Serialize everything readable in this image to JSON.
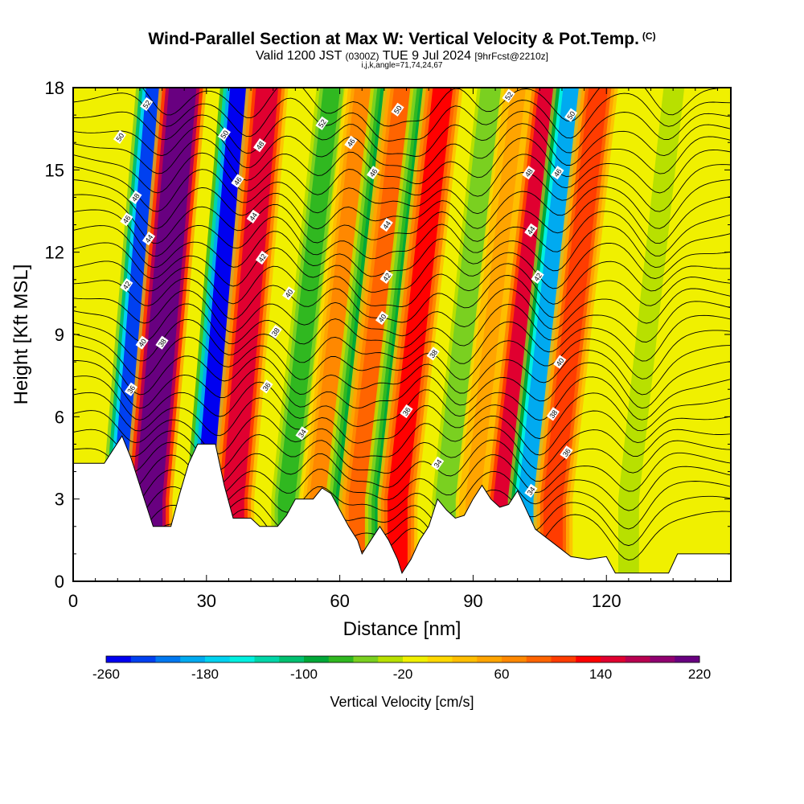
{
  "title": "Wind-Parallel Section at Max W: Vertical Velocity & Pot.Temp.",
  "title_mark": "(C)",
  "subtitle_pre": "Valid 1200 JST",
  "subtitle_zulu": "(0300Z)",
  "subtitle_date": "TUE 9 Jul 2024",
  "subtitle_fcst": "[9hrFcst@2210z]",
  "subtitle2": "i,j,k,angle=71,74,24,67",
  "colorbar_label": "Vertical Velocity [cm/s]",
  "colors": {
    "scale": [
      "#0000f0",
      "#0040f0",
      "#0078f0",
      "#00aaf0",
      "#00d2f0",
      "#00f0e0",
      "#00d6a8",
      "#00c070",
      "#00a838",
      "#30b820",
      "#7ad020",
      "#b8e000",
      "#f0f000",
      "#ffd800",
      "#ffbe00",
      "#ffa400",
      "#ff8800",
      "#ff6400",
      "#ff3c00",
      "#ff0000",
      "#e00030",
      "#b80050",
      "#900070",
      "#680080"
    ]
  },
  "chart_data": {
    "type": "heatmap",
    "xlabel": "Distance [nm]",
    "ylabel": "Height [Kft MSL]",
    "xlim": [
      0,
      148
    ],
    "ylim": [
      0,
      18
    ],
    "xticks": [
      0,
      30,
      60,
      90,
      120
    ],
    "yticks": [
      0,
      3,
      6,
      9,
      12,
      15,
      18
    ],
    "colorbar": {
      "min": -260,
      "max": 240,
      "step": 20,
      "tick_labels": [
        "-260",
        "-180",
        "-100",
        "-20",
        "60",
        "140",
        "220"
      ]
    },
    "vertical_velocity_bands": [
      {
        "x": 12,
        "w": -240
      },
      {
        "x": 17,
        "w": 220
      },
      {
        "x": 31,
        "w": -250
      },
      {
        "x": 36,
        "w": 150
      },
      {
        "x": 48,
        "w": -80
      },
      {
        "x": 55,
        "w": 70
      },
      {
        "x": 61,
        "w": -90
      },
      {
        "x": 64,
        "w": 90
      },
      {
        "x": 70,
        "w": -100
      },
      {
        "x": 73,
        "w": 120
      },
      {
        "x": 84,
        "w": -60
      },
      {
        "x": 90,
        "w": 50
      },
      {
        "x": 97,
        "w": 140
      },
      {
        "x": 103,
        "w": -200
      },
      {
        "x": 108,
        "w": 110
      },
      {
        "x": 125,
        "w": -40
      }
    ],
    "terrain": [
      [
        0,
        4.3
      ],
      [
        7,
        4.3
      ],
      [
        11,
        5.3
      ],
      [
        13,
        4.5
      ],
      [
        16,
        3.0
      ],
      [
        18,
        2.0
      ],
      [
        22,
        2.0
      ],
      [
        24,
        3.2
      ],
      [
        26,
        4.3
      ],
      [
        28,
        5.0
      ],
      [
        32,
        5.0
      ],
      [
        34,
        3.5
      ],
      [
        36,
        2.3
      ],
      [
        40,
        2.3
      ],
      [
        42,
        2.0
      ],
      [
        46,
        2.0
      ],
      [
        48,
        2.4
      ],
      [
        50,
        3.0
      ],
      [
        54,
        3.0
      ],
      [
        56,
        3.4
      ],
      [
        58,
        3.2
      ],
      [
        62,
        2.0
      ],
      [
        64,
        1.5
      ],
      [
        65,
        1.0
      ],
      [
        67,
        1.5
      ],
      [
        69,
        2.0
      ],
      [
        71,
        1.5
      ],
      [
        73,
        0.8
      ],
      [
        74,
        0.3
      ],
      [
        76,
        0.8
      ],
      [
        78,
        1.5
      ],
      [
        80,
        2.0
      ],
      [
        82,
        3.0
      ],
      [
        84,
        2.6
      ],
      [
        86,
        2.3
      ],
      [
        88,
        2.4
      ],
      [
        90,
        3.0
      ],
      [
        92,
        3.5
      ],
      [
        94,
        3.0
      ],
      [
        96,
        2.7
      ],
      [
        98,
        2.8
      ],
      [
        100,
        3.3
      ],
      [
        102,
        2.6
      ],
      [
        104,
        1.9
      ],
      [
        108,
        1.4
      ],
      [
        112,
        0.9
      ],
      [
        116,
        0.8
      ],
      [
        120,
        0.9
      ],
      [
        122,
        0.3
      ],
      [
        124,
        0.3
      ],
      [
        132,
        0.3
      ],
      [
        134,
        0.3
      ],
      [
        136,
        1.0
      ],
      [
        148,
        1.0
      ]
    ],
    "theta_contour_labels": [
      {
        "text": "52",
        "x": 16.5,
        "y": 17.4
      },
      {
        "text": "50",
        "x": 10.5,
        "y": 16.2
      },
      {
        "text": "48",
        "x": 14.0,
        "y": 14.0
      },
      {
        "text": "46",
        "x": 12.0,
        "y": 13.2
      },
      {
        "text": "44",
        "x": 17.0,
        "y": 12.5
      },
      {
        "text": "42",
        "x": 12.0,
        "y": 10.8
      },
      {
        "text": "40",
        "x": 15.5,
        "y": 8.7
      },
      {
        "text": "38",
        "x": 20.0,
        "y": 8.7
      },
      {
        "text": "36",
        "x": 13.0,
        "y": 7.0
      },
      {
        "text": "50",
        "x": 34.0,
        "y": 16.3
      },
      {
        "text": "48",
        "x": 42.0,
        "y": 15.9
      },
      {
        "text": "46",
        "x": 37.0,
        "y": 14.6
      },
      {
        "text": "44",
        "x": 40.5,
        "y": 13.3
      },
      {
        "text": "42",
        "x": 42.5,
        "y": 11.8
      },
      {
        "text": "40",
        "x": 48.5,
        "y": 10.5
      },
      {
        "text": "38",
        "x": 45.5,
        "y": 9.1
      },
      {
        "text": "36",
        "x": 43.5,
        "y": 7.1
      },
      {
        "text": "34",
        "x": 51.5,
        "y": 5.4
      },
      {
        "text": "52",
        "x": 56.0,
        "y": 16.7
      },
      {
        "text": "50",
        "x": 73.0,
        "y": 17.2
      },
      {
        "text": "46",
        "x": 62.5,
        "y": 16.0
      },
      {
        "text": "46",
        "x": 67.5,
        "y": 14.9
      },
      {
        "text": "44",
        "x": 70.5,
        "y": 13.0
      },
      {
        "text": "42",
        "x": 70.5,
        "y": 11.1
      },
      {
        "text": "40",
        "x": 69.5,
        "y": 9.6
      },
      {
        "text": "38",
        "x": 81.0,
        "y": 8.3
      },
      {
        "text": "36",
        "x": 75.0,
        "y": 6.2
      },
      {
        "text": "34",
        "x": 82.0,
        "y": 4.3
      },
      {
        "text": "52",
        "x": 98.0,
        "y": 17.7
      },
      {
        "text": "50",
        "x": 112.0,
        "y": 17.0
      },
      {
        "text": "48",
        "x": 102.5,
        "y": 14.9
      },
      {
        "text": "46",
        "x": 109.0,
        "y": 14.9
      },
      {
        "text": "44",
        "x": 103.0,
        "y": 12.8
      },
      {
        "text": "42",
        "x": 104.5,
        "y": 11.1
      },
      {
        "text": "40",
        "x": 109.5,
        "y": 8.0
      },
      {
        "text": "38",
        "x": 108.0,
        "y": 6.1
      },
      {
        "text": "36",
        "x": 111.0,
        "y": 4.7
      },
      {
        "text": "34",
        "x": 103.0,
        "y": 3.3
      }
    ]
  }
}
